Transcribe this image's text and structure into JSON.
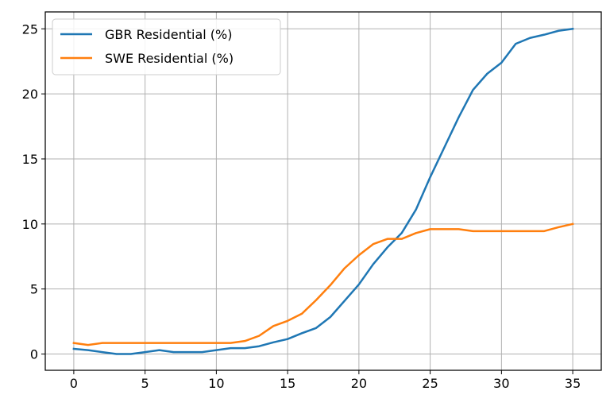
{
  "chart_data": {
    "type": "line",
    "title": "",
    "xlabel": "",
    "ylabel": "",
    "xlim": [
      -2,
      37
    ],
    "ylim": [
      -1.25,
      26.3
    ],
    "xticks": [
      0,
      5,
      10,
      15,
      20,
      25,
      30,
      35
    ],
    "yticks": [
      0,
      5,
      10,
      15,
      20,
      25
    ],
    "grid": true,
    "legend_position": "top-left",
    "x": [
      0,
      1,
      2,
      3,
      4,
      5,
      6,
      7,
      8,
      9,
      10,
      11,
      12,
      13,
      14,
      15,
      16,
      17,
      18,
      19,
      20,
      21,
      22,
      23,
      24,
      25,
      26,
      27,
      28,
      29,
      30,
      31,
      32,
      33,
      34,
      35
    ],
    "series": [
      {
        "name": "GBR Residential (%)",
        "color": "#1f77b4",
        "values": [
          0.4,
          0.3,
          0.15,
          0.0,
          0.0,
          0.15,
          0.3,
          0.15,
          0.15,
          0.15,
          0.3,
          0.45,
          0.45,
          0.6,
          0.9,
          1.15,
          1.6,
          2.0,
          2.85,
          4.1,
          5.35,
          6.9,
          8.2,
          9.3,
          11.1,
          13.6,
          15.9,
          18.2,
          20.3,
          21.55,
          22.4,
          23.85,
          24.3,
          24.55,
          24.85,
          25.0
        ]
      },
      {
        "name": "SWE Residential (%)",
        "color": "#ff7f0e",
        "values": [
          0.85,
          0.7,
          0.85,
          0.85,
          0.85,
          0.85,
          0.85,
          0.85,
          0.85,
          0.85,
          0.85,
          0.85,
          1.0,
          1.4,
          2.15,
          2.55,
          3.1,
          4.15,
          5.3,
          6.6,
          7.6,
          8.45,
          8.85,
          8.85,
          9.3,
          9.6,
          9.6,
          9.6,
          9.45,
          9.45,
          9.45,
          9.45,
          9.45,
          9.45,
          9.75,
          10.0
        ]
      }
    ]
  }
}
